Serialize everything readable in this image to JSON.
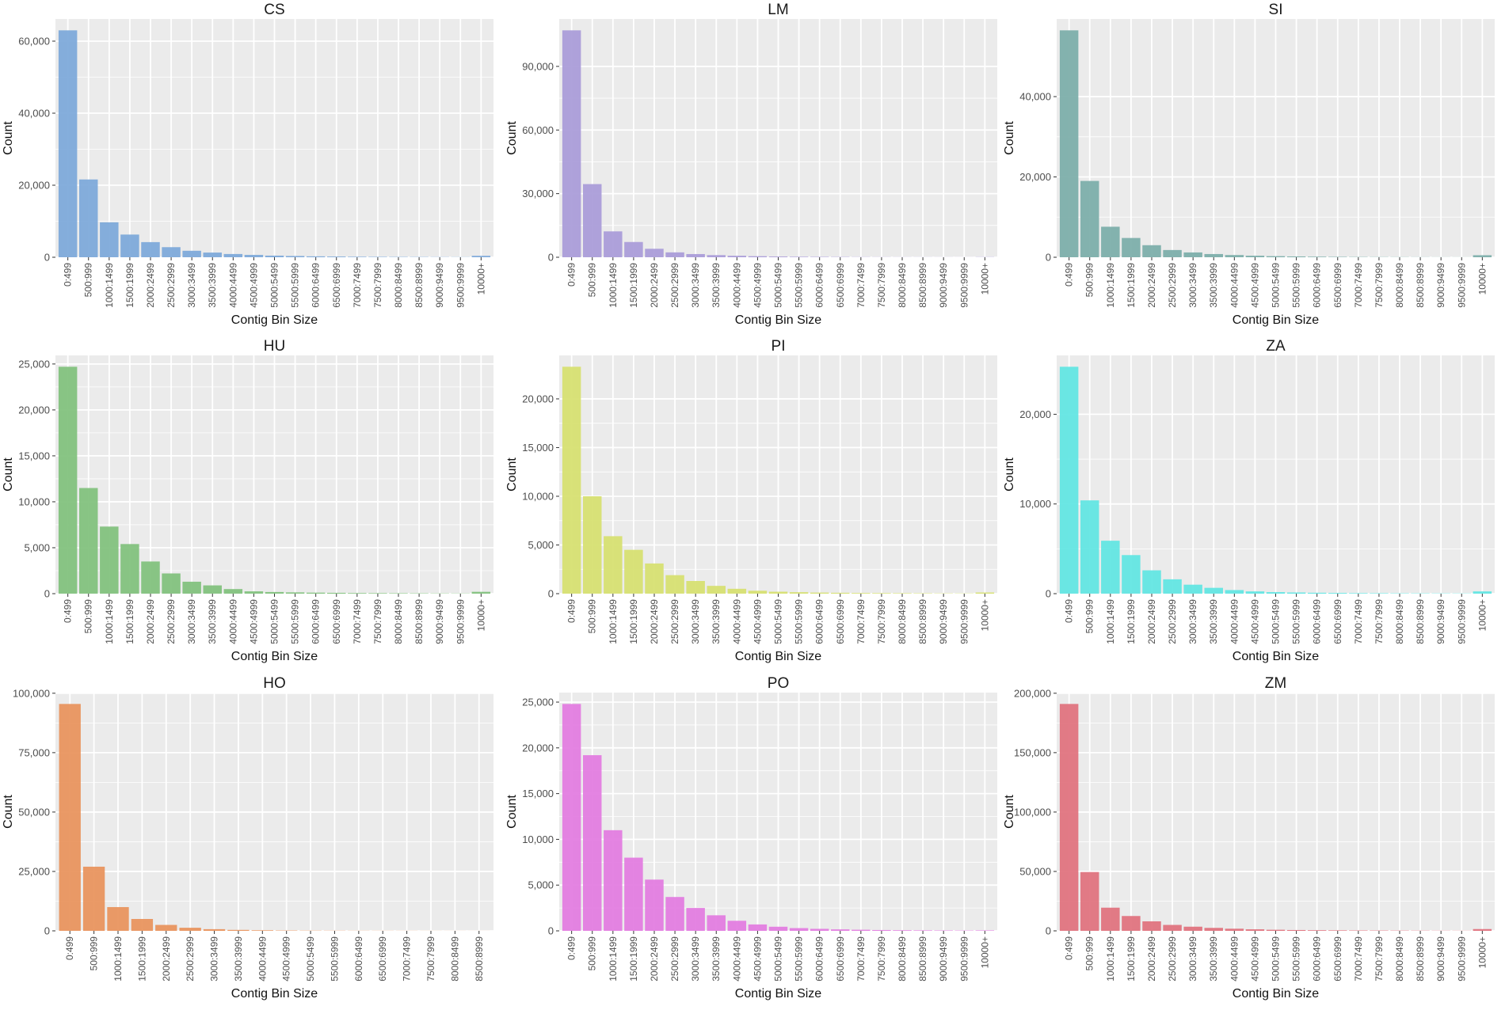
{
  "figure": {
    "xlabel": "Contig Bin Size",
    "ylabel": "Count"
  },
  "chart_data": [
    {
      "type": "bar",
      "title": "CS",
      "color": "#7ba7d9",
      "xlabel": "Contig Bin Size",
      "ylabel": "Count",
      "categories": [
        "0:499",
        "500:999",
        "1000:1499",
        "1500:1999",
        "2000:2499",
        "2500:2999",
        "3000:3499",
        "3500:3999",
        "4000:4499",
        "4500:4999",
        "5000:5499",
        "5500:5999",
        "6000:6499",
        "6500:6999",
        "7000:7499",
        "7500:7999",
        "8000:8499",
        "8500:8999",
        "9000:9499",
        "9500:9999",
        "10000+"
      ],
      "values": [
        63000,
        21600,
        9700,
        6300,
        4200,
        2800,
        1800,
        1300,
        900,
        650,
        450,
        350,
        250,
        200,
        150,
        120,
        100,
        80,
        60,
        50,
        400
      ],
      "yticks": [
        0,
        20000,
        40000,
        60000
      ],
      "ytick_labels": [
        "0",
        "20,000",
        "40,000",
        "60,000"
      ],
      "ylim": [
        0,
        66150
      ]
    },
    {
      "type": "bar",
      "title": "LM",
      "color": "#a89ad8",
      "xlabel": "Contig Bin Size",
      "ylabel": "Count",
      "categories": [
        "0:499",
        "500:999",
        "1000:1499",
        "1500:1999",
        "2000:2499",
        "2500:2999",
        "3000:3499",
        "3500:3999",
        "4000:4499",
        "4500:4999",
        "5000:5499",
        "5500:5999",
        "6000:6499",
        "6500:6999",
        "7000:7499",
        "7500:7999",
        "8000:8499",
        "8500:8999",
        "9000:9499",
        "9500:9999",
        "10000+"
      ],
      "values": [
        107000,
        34500,
        12200,
        7200,
        4000,
        2300,
        1500,
        1000,
        700,
        500,
        350,
        250,
        200,
        150,
        100,
        80,
        60,
        50,
        40,
        30,
        100
      ],
      "yticks": [
        0,
        30000,
        60000,
        90000
      ],
      "ytick_labels": [
        "0",
        "30,000",
        "60,000",
        "90,000"
      ],
      "ylim": [
        0,
        112350
      ]
    },
    {
      "type": "bar",
      "title": "SI",
      "color": "#7aada8",
      "xlabel": "Contig Bin Size",
      "ylabel": "Count",
      "categories": [
        "0:499",
        "500:999",
        "1000:1499",
        "1500:1999",
        "2000:2499",
        "2500:2999",
        "3000:3499",
        "3500:3999",
        "4000:4499",
        "4500:4999",
        "5000:5499",
        "5500:5999",
        "6000:6499",
        "6500:6999",
        "7000:7499",
        "7500:7999",
        "8000:8499",
        "8500:8999",
        "9000:9499",
        "9500:9999",
        "10000+"
      ],
      "values": [
        56500,
        19000,
        7600,
        4800,
        3000,
        1800,
        1200,
        800,
        550,
        380,
        270,
        200,
        150,
        110,
        80,
        60,
        50,
        40,
        30,
        25,
        500
      ],
      "yticks": [
        0,
        20000,
        40000
      ],
      "ytick_labels": [
        "0",
        "20,000",
        "40,000"
      ],
      "ylim": [
        0,
        59325
      ]
    },
    {
      "type": "bar",
      "title": "HU",
      "color": "#7fc07b",
      "xlabel": "Contig Bin Size",
      "ylabel": "Count",
      "categories": [
        "0:499",
        "500:999",
        "1000:1499",
        "1500:1999",
        "2000:2499",
        "2500:2999",
        "3000:3499",
        "3500:3999",
        "4000:4499",
        "4500:4999",
        "5000:5499",
        "5500:5999",
        "6000:6499",
        "6500:6999",
        "7000:7499",
        "7500:7999",
        "8000:8499",
        "8500:8999",
        "9000:9499",
        "9500:9999",
        "10000+"
      ],
      "values": [
        24700,
        11500,
        7300,
        5400,
        3500,
        2200,
        1300,
        900,
        500,
        250,
        180,
        140,
        110,
        90,
        70,
        60,
        50,
        40,
        30,
        25,
        200
      ],
      "yticks": [
        0,
        5000,
        10000,
        15000,
        20000,
        25000
      ],
      "ytick_labels": [
        "0",
        "5,000",
        "10,000",
        "15,000",
        "20,000",
        "25,000"
      ],
      "ylim": [
        0,
        25935
      ]
    },
    {
      "type": "bar",
      "title": "PI",
      "color": "#d6df6e",
      "xlabel": "Contig Bin Size",
      "ylabel": "Count",
      "categories": [
        "0:499",
        "500:999",
        "1000:1499",
        "1500:1999",
        "2000:2499",
        "2500:2999",
        "3000:3499",
        "3500:3999",
        "4000:4499",
        "4500:4999",
        "5000:5499",
        "5500:5999",
        "6000:6499",
        "6500:6999",
        "7000:7499",
        "7500:7999",
        "8000:8499",
        "8500:8999",
        "9000:9499",
        "9500:9999",
        "10000+"
      ],
      "values": [
        23300,
        10000,
        5900,
        4500,
        3100,
        1900,
        1300,
        800,
        500,
        300,
        200,
        150,
        110,
        90,
        70,
        60,
        50,
        40,
        30,
        25,
        120
      ],
      "yticks": [
        0,
        5000,
        10000,
        15000,
        20000
      ],
      "ytick_labels": [
        "0",
        "5,000",
        "10,000",
        "15,000",
        "20,000"
      ],
      "ylim": [
        0,
        24465
      ]
    },
    {
      "type": "bar",
      "title": "ZA",
      "color": "#5ee5e2",
      "xlabel": "Contig Bin Size",
      "ylabel": "Count",
      "categories": [
        "0:499",
        "500:999",
        "1000:1499",
        "1500:1999",
        "2000:2499",
        "2500:2999",
        "3000:3499",
        "3500:3999",
        "4000:4499",
        "4500:4999",
        "5000:5499",
        "5500:5999",
        "6000:6499",
        "6500:6999",
        "7000:7499",
        "7500:7999",
        "8000:8499",
        "8500:8999",
        "9000:9499",
        "9500:9999",
        "10000+"
      ],
      "values": [
        25300,
        10400,
        5900,
        4300,
        2600,
        1600,
        1000,
        650,
        400,
        250,
        170,
        130,
        100,
        80,
        60,
        50,
        40,
        35,
        30,
        25,
        250
      ],
      "yticks": [
        0,
        10000,
        20000
      ],
      "ytick_labels": [
        "0",
        "10,000",
        "20,000"
      ],
      "ylim": [
        0,
        26565
      ]
    },
    {
      "type": "bar",
      "title": "HO",
      "color": "#e8915a",
      "xlabel": "Contig Bin Size",
      "ylabel": "Count",
      "categories": [
        "0:499",
        "500:999",
        "1000:1499",
        "1500:1999",
        "2000:2499",
        "2500:2999",
        "3000:3499",
        "3500:3999",
        "4000:4499",
        "4500:4999",
        "5000:5499",
        "5500:5999",
        "6000:6499",
        "6500:6999",
        "7000:7499",
        "7500:7999",
        "8000:8499",
        "8500:8999"
      ],
      "values": [
        95500,
        27000,
        10000,
        5000,
        2500,
        1300,
        700,
        400,
        250,
        150,
        100,
        80,
        60,
        50,
        40,
        30,
        25,
        20
      ],
      "yticks": [
        0,
        25000,
        50000,
        75000,
        100000
      ],
      "ytick_labels": [
        "0",
        "25,000",
        "50,000",
        "75,000",
        "100,000"
      ],
      "ylim": [
        0,
        100275
      ]
    },
    {
      "type": "bar",
      "title": "PO",
      "color": "#e27ae0",
      "xlabel": "Contig Bin Size",
      "ylabel": "Count",
      "categories": [
        "0:499",
        "500:999",
        "1000:1499",
        "1500:1999",
        "2000:2499",
        "2500:2999",
        "3000:3499",
        "3500:3999",
        "4000:4499",
        "4500:4999",
        "5000:5499",
        "5500:5999",
        "6000:6499",
        "6500:6999",
        "7000:7499",
        "7500:7999",
        "8000:8499",
        "8500:8999",
        "9000:9499",
        "9500:9999",
        "10000+"
      ],
      "values": [
        24800,
        19200,
        11000,
        8000,
        5600,
        3700,
        2500,
        1700,
        1100,
        700,
        450,
        300,
        220,
        160,
        120,
        90,
        70,
        55,
        45,
        35,
        50
      ],
      "yticks": [
        0,
        5000,
        10000,
        15000,
        20000,
        25000
      ],
      "ytick_labels": [
        "0",
        "5,000",
        "10,000",
        "15,000",
        "20,000",
        "25,000"
      ],
      "ylim": [
        0,
        26040
      ]
    },
    {
      "type": "bar",
      "title": "ZM",
      "color": "#e0707c",
      "xlabel": "Contig Bin Size",
      "ylabel": "Count",
      "categories": [
        "0:499",
        "500:999",
        "1000:1499",
        "1500:1999",
        "2000:2499",
        "2500:2999",
        "3000:3499",
        "3500:3999",
        "4000:4499",
        "4500:4999",
        "5000:5499",
        "5500:5999",
        "6000:6499",
        "6500:6999",
        "7000:7499",
        "7500:7999",
        "8000:8499",
        "8500:8999",
        "9000:9499",
        "9500:9999",
        "10000+"
      ],
      "values": [
        191000,
        49500,
        19500,
        12500,
        8000,
        5000,
        3500,
        2500,
        1800,
        1300,
        900,
        700,
        550,
        450,
        350,
        300,
        250,
        200,
        150,
        120,
        1500
      ],
      "yticks": [
        0,
        50000,
        100000,
        150000,
        200000
      ],
      "ytick_labels": [
        "0",
        "50,000",
        "100,000",
        "150,000",
        "200,000"
      ],
      "ylim": [
        0,
        200550
      ]
    }
  ]
}
